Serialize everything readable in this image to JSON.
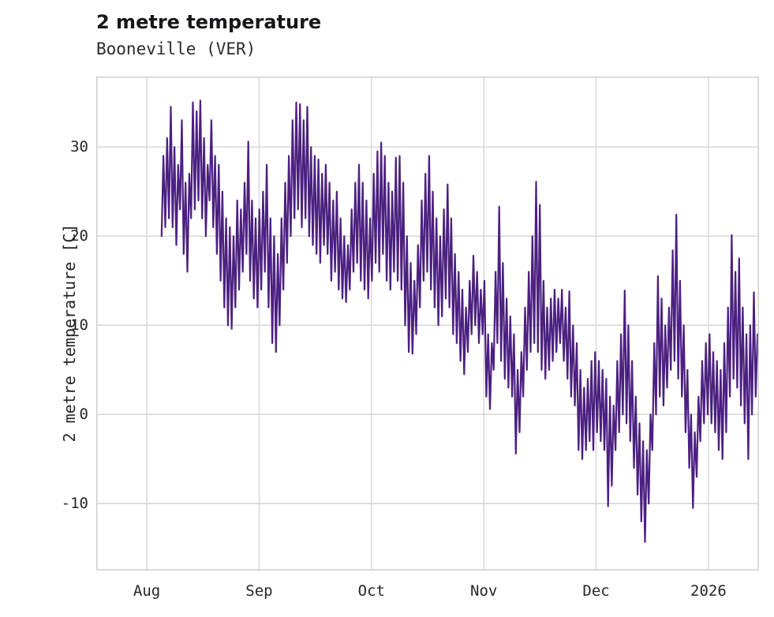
{
  "header": {
    "title": "2 metre temperature",
    "subtitle": "Booneville (VER)"
  },
  "colors": {
    "line": "#4c2080",
    "grid": "#d6d6d6",
    "plot_border": "#cfcfcf",
    "tick_text": "#262626",
    "background": "#ffffff"
  },
  "chart_data": {
    "type": "line",
    "title": "2 metre temperature",
    "subtitle": "Booneville (VER)",
    "ylabel": "2 metre temperature [C]",
    "xlabel": "",
    "grid": true,
    "legend": "none",
    "x_tick_labels": [
      "Aug",
      "Sep",
      "Oct",
      "Nov",
      "Dec",
      "2026"
    ],
    "x_tick_positions_months": [
      0,
      1,
      2,
      3,
      4,
      5
    ],
    "y_tick_labels": [
      "-10",
      "0",
      "10",
      "20",
      "30"
    ],
    "y_tick_values": [
      -10,
      0,
      10,
      20,
      30
    ],
    "x_domain": [
      -0.45,
      5.45
    ],
    "y_domain": [
      -17.5,
      37.9
    ],
    "sampling": "twice-daily (night min / day max), Aug 5 through Jan 13",
    "start_day_offset_from_aug1": 4,
    "days_per_month": 30.44,
    "series": [
      {
        "name": "2 metre temperature [C]",
        "y": [
          20,
          29,
          21,
          31,
          22,
          34.5,
          21,
          30,
          19,
          28,
          23,
          33,
          18,
          26,
          16,
          27,
          22,
          35,
          23,
          34,
          24,
          35.2,
          22,
          31,
          20,
          28,
          24,
          33,
          21,
          29,
          18,
          28,
          15,
          25,
          12,
          22,
          10,
          21,
          9.6,
          20,
          12,
          24,
          14,
          23,
          16,
          26,
          18,
          30.6,
          15,
          24,
          13,
          22,
          12,
          23,
          14,
          25,
          16,
          28,
          12,
          22,
          8,
          20,
          7,
          18,
          10,
          22,
          14,
          26,
          17,
          29,
          20,
          33,
          22,
          35,
          23,
          34.8,
          21,
          33,
          22,
          34.5,
          20,
          30,
          19,
          29,
          18,
          28.6,
          17,
          27,
          19,
          28,
          18,
          26,
          15,
          24,
          16,
          25,
          14,
          22,
          13,
          20,
          12.6,
          19,
          14,
          23,
          16,
          26,
          17,
          28,
          15,
          26,
          14,
          24,
          13,
          22,
          15,
          27,
          17,
          29.5,
          16,
          30.5,
          18,
          29,
          15,
          26,
          14,
          25,
          16,
          28.8,
          15,
          29,
          14,
          26,
          10,
          20,
          7,
          17,
          6.8,
          15,
          9,
          19,
          12,
          24,
          15,
          27,
          16,
          29,
          14,
          25,
          12,
          22,
          10,
          20,
          11,
          23,
          13,
          25.8,
          12,
          22,
          9,
          18,
          8,
          16,
          6,
          14,
          4.5,
          12,
          7,
          15,
          9,
          17.8,
          10,
          16,
          8,
          14,
          9,
          15,
          2,
          9,
          0.6,
          8,
          5,
          16,
          8,
          23.3,
          6,
          17,
          4,
          13,
          3,
          11,
          2,
          9,
          -4.4,
          5,
          -2,
          7,
          2,
          12,
          5,
          16,
          7,
          20,
          8,
          26.1,
          7,
          23.5,
          5,
          15,
          4,
          12,
          5,
          13,
          6,
          14,
          7,
          13,
          8,
          14,
          6,
          12,
          4,
          13.8,
          2,
          10,
          1,
          8,
          -4,
          5,
          -5,
          3,
          -4,
          4,
          -3,
          6,
          -4,
          7,
          -2,
          6,
          -3,
          5,
          -4,
          4,
          -10.3,
          2,
          -8,
          1,
          -4,
          6,
          -2,
          9,
          0,
          13.9,
          -1,
          10,
          -3,
          6,
          -6,
          2,
          -9,
          -1,
          -12,
          -3,
          -14.3,
          -4,
          -10,
          0,
          -4,
          8,
          0,
          15.5,
          2,
          13,
          1,
          10,
          3,
          12,
          5,
          18.4,
          6,
          22.4,
          4,
          15,
          2,
          10,
          -2,
          5,
          -6,
          0,
          -10.5,
          -2,
          -7,
          2,
          -3,
          6,
          -1,
          8,
          0,
          9,
          -1,
          7,
          -2,
          6,
          -4,
          5,
          -5,
          8,
          -2,
          12,
          2,
          20.1,
          4,
          16,
          3,
          17.5,
          1,
          12,
          -1,
          9,
          -5,
          10,
          0,
          13.7,
          2,
          9
        ]
      }
    ]
  }
}
